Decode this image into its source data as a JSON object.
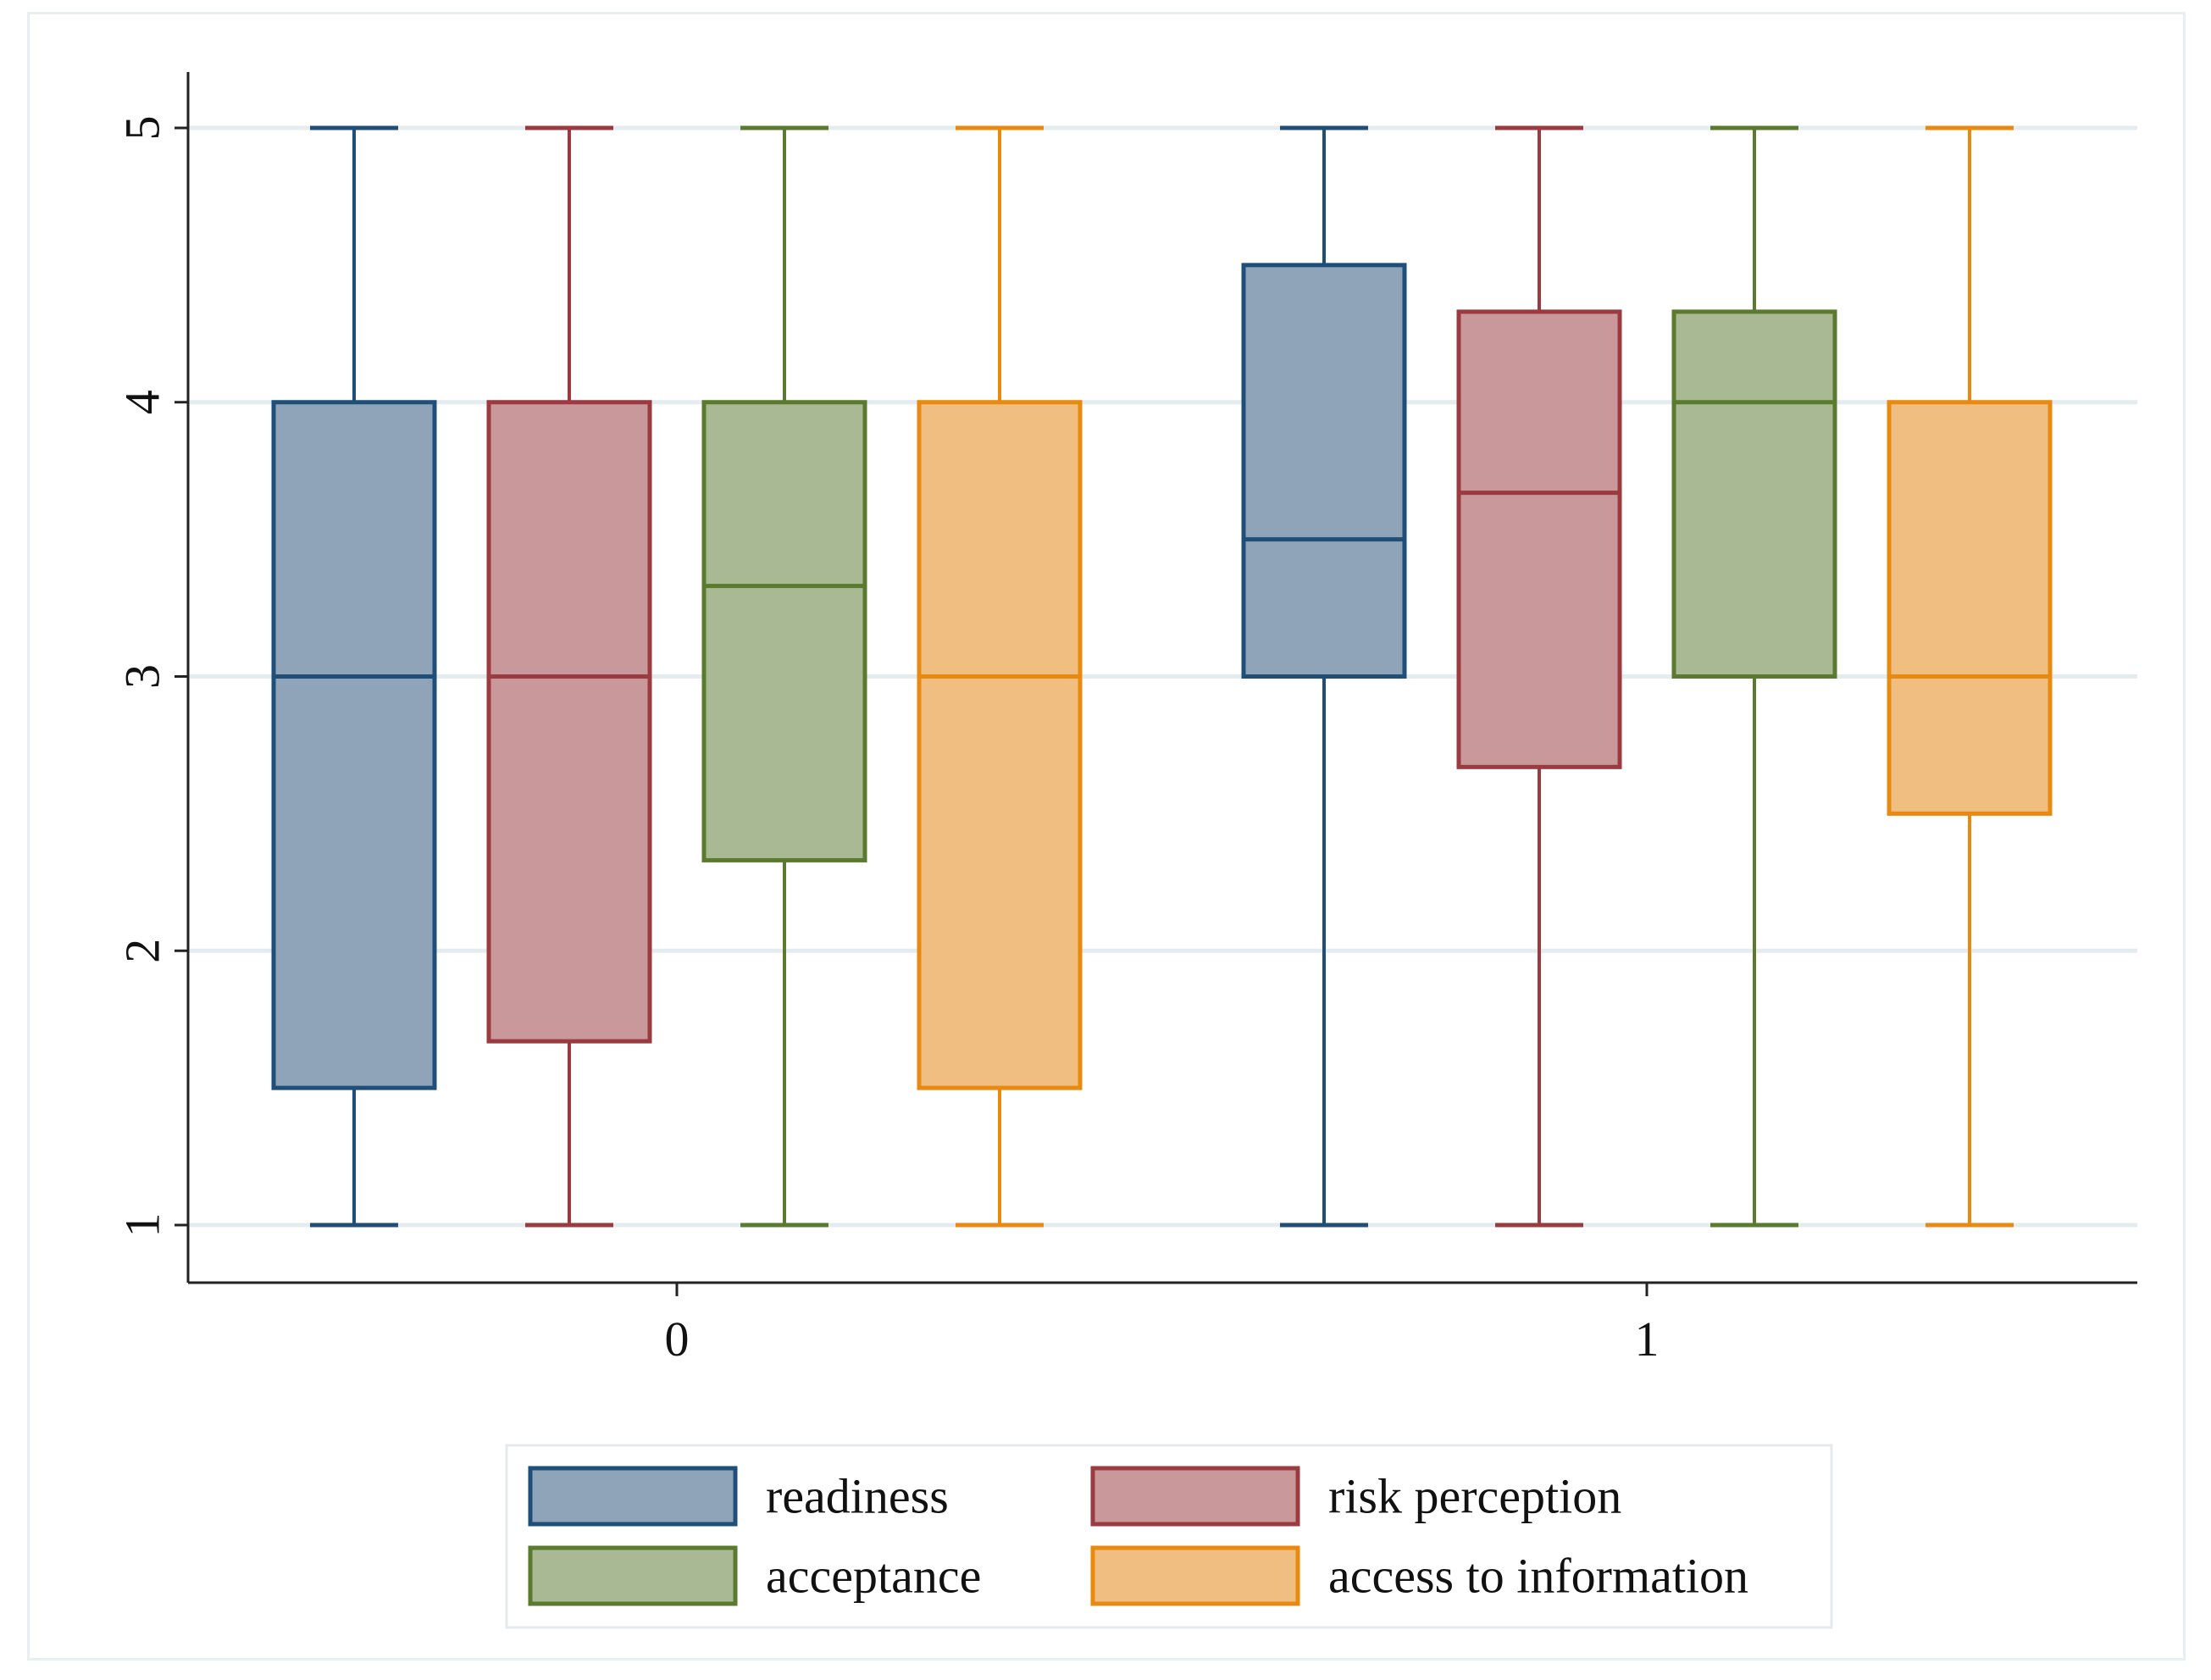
{
  "chart_data": {
    "type": "box",
    "title": "",
    "xlabel": "",
    "ylabel": "",
    "ylim": [
      0.8,
      5.2
    ],
    "yticks": [
      1,
      2,
      3,
      4,
      5
    ],
    "ytick_labels": [
      "1",
      "2",
      "3",
      "4",
      "5"
    ],
    "grid": true,
    "legend_position": "bottom",
    "categories": [
      "0",
      "1"
    ],
    "series": [
      {
        "name": "readiness",
        "fill": "#8fa4b8",
        "stroke": "#1f4e79",
        "boxes": [
          {
            "min": 1,
            "q1": 1.5,
            "median": 3,
            "q3": 4,
            "max": 5
          },
          {
            "min": 1,
            "q1": 3,
            "median": 3.5,
            "q3": 4.5,
            "max": 5
          }
        ]
      },
      {
        "name": "risk perception",
        "fill": "#c9989b",
        "stroke": "#9c3b3f",
        "boxes": [
          {
            "min": 1,
            "q1": 1.67,
            "median": 3,
            "q3": 4,
            "max": 5
          },
          {
            "min": 1,
            "q1": 2.67,
            "median": 3.67,
            "q3": 4.33,
            "max": 5
          }
        ]
      },
      {
        "name": "acceptance",
        "fill": "#a8b994",
        "stroke": "#5a7a2e",
        "boxes": [
          {
            "min": 1,
            "q1": 2.33,
            "median": 3.33,
            "q3": 4,
            "max": 5
          },
          {
            "min": 1,
            "q1": 3,
            "median": 4,
            "q3": 4.33,
            "max": 5
          }
        ]
      },
      {
        "name": "access to information",
        "fill": "#f0be80",
        "stroke": "#e88a10",
        "boxes": [
          {
            "min": 1,
            "q1": 1.5,
            "median": 3,
            "q3": 4,
            "max": 5
          },
          {
            "min": 1,
            "q1": 2.5,
            "median": 3,
            "q3": 4,
            "max": 5
          }
        ]
      }
    ]
  }
}
